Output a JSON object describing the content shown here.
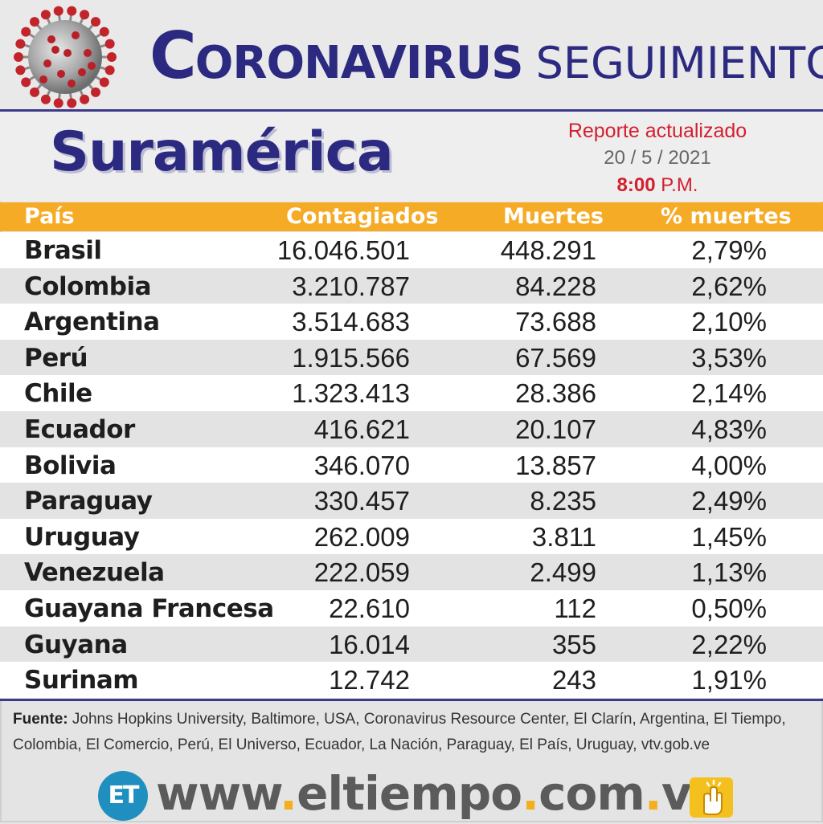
{
  "header": {
    "title_big": "C",
    "title_rest": "ORONAVIRUS",
    "title_light": "SEGUIMIENTO"
  },
  "region": "Suramérica",
  "report": {
    "line1": "Reporte actualizado",
    "date": "20 / 5 / 2021",
    "time": "8:00",
    "ampm": "P.M."
  },
  "table": {
    "columns": [
      "País",
      "Contagiados",
      "Muertes",
      "% muertes"
    ],
    "rows": [
      {
        "pais": "Brasil",
        "contagiados": "16.046.501",
        "muertes": "448.291",
        "pct": "2,79%"
      },
      {
        "pais": "Colombia",
        "contagiados": "3.210.787",
        "muertes": "84.228",
        "pct": "2,62%"
      },
      {
        "pais": "Argentina",
        "contagiados": "3.514.683",
        "muertes": "73.688",
        "pct": "2,10%"
      },
      {
        "pais": "Perú",
        "contagiados": "1.915.566",
        "muertes": "67.569",
        "pct": "3,53%"
      },
      {
        "pais": "Chile",
        "contagiados": "1.323.413",
        "muertes": "28.386",
        "pct": "2,14%"
      },
      {
        "pais": "Ecuador",
        "contagiados": "416.621",
        "muertes": "20.107",
        "pct": "4,83%"
      },
      {
        "pais": "Bolivia",
        "contagiados": "346.070",
        "muertes": "13.857",
        "pct": "4,00%"
      },
      {
        "pais": "Paraguay",
        "contagiados": "330.457",
        "muertes": "8.235",
        "pct": "2,49%"
      },
      {
        "pais": "Uruguay",
        "contagiados": "262.009",
        "muertes": "3.811",
        "pct": "1,45%"
      },
      {
        "pais": "Venezuela",
        "contagiados": "222.059",
        "muertes": "2.499",
        "pct": "1,13%"
      },
      {
        "pais": "Guayana Francesa",
        "contagiados": "22.610",
        "muertes": "112",
        "pct": "0,50%"
      },
      {
        "pais": "Guyana",
        "contagiados": "16.014",
        "muertes": "355",
        "pct": "2,22%"
      },
      {
        "pais": "Surinam",
        "contagiados": "12.742",
        "muertes": "243",
        "pct": "1,91%"
      }
    ]
  },
  "source": {
    "label": "Fuente:",
    "text": "Johns Hopkins University, Baltimore, USA, Coronavirus Resource Center,  El Clarín, Argentina, El Tiempo, Colombia, El Comercio, Perú, El Universo, Ecuador, La Nación, Paraguay, El País, Uruguay, vtv.gob.ve"
  },
  "footer": {
    "logo": "ET",
    "www": "www",
    "domain_name": "eltiempo",
    "com": "com",
    "ve": "ve",
    "dot": "."
  },
  "colors": {
    "navy": "#2b2a80",
    "orange": "#f6ab26",
    "red": "#d3202f",
    "logo_blue": "#1e8fbf"
  },
  "icons": {
    "virus": "coronavirus-icon",
    "click": "hand-click-icon"
  }
}
